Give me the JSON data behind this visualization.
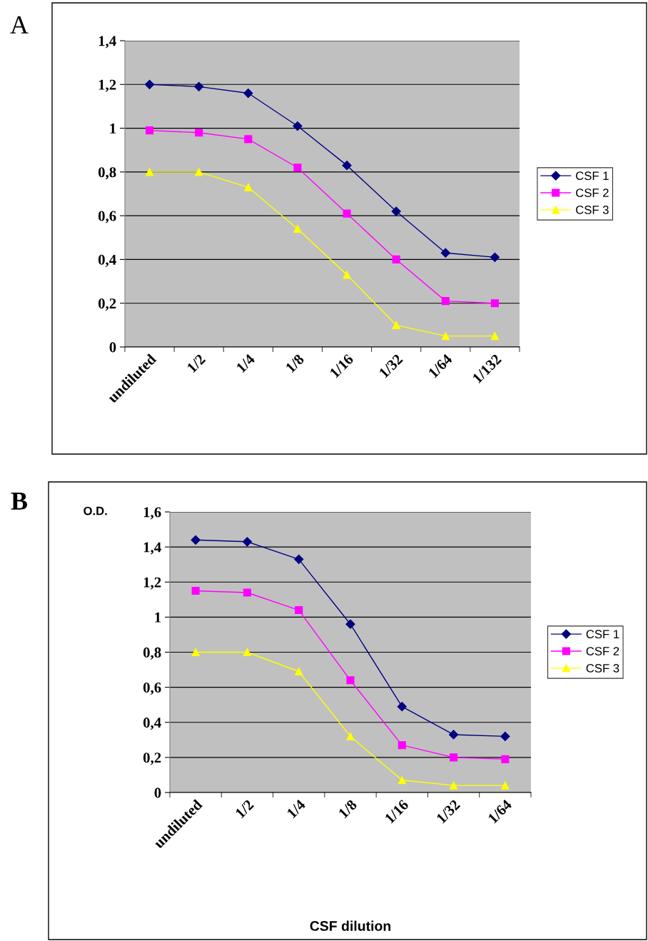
{
  "chart_data": [
    {
      "type": "line",
      "annotations": [
        "A"
      ],
      "categories": [
        "undiluted",
        "1/2",
        "1/4",
        "1/8",
        "1/16",
        "1/32",
        "1/64",
        "1/132"
      ],
      "ylim": [
        0,
        1.4
      ],
      "yticks": [
        {
          "value": 0,
          "label": "0"
        },
        {
          "value": 0.2,
          "label": "0,2"
        },
        {
          "value": 0.4,
          "label": "0,4"
        },
        {
          "value": 0.6,
          "label": "0,6"
        },
        {
          "value": 0.8,
          "label": "0,8"
        },
        {
          "value": 1,
          "label": "1"
        },
        {
          "value": 1.2,
          "label": "1,2"
        },
        {
          "value": 1.4,
          "label": "1,4"
        }
      ],
      "grid": "y",
      "legend": "right",
      "series": [
        {
          "name": "CSF 1",
          "color": "#000080",
          "marker": "diamond",
          "values": [
            1.2,
            1.19,
            1.16,
            1.01,
            0.83,
            0.62,
            0.43,
            0.41
          ]
        },
        {
          "name": "CSF 2",
          "color": "#ff00ff",
          "marker": "square",
          "values": [
            0.99,
            0.98,
            0.95,
            0.82,
            0.61,
            0.4,
            0.21,
            0.2
          ]
        },
        {
          "name": "CSF 3",
          "color": "#ffff00",
          "marker": "triangle",
          "values": [
            0.8,
            0.8,
            0.73,
            0.54,
            0.33,
            0.1,
            0.05,
            0.05
          ]
        }
      ]
    },
    {
      "type": "line",
      "annotations": [
        "B"
      ],
      "ylabel": "O.D.",
      "xlabel": "CSF dilution",
      "categories": [
        "undiluted",
        "1/2",
        "1/4",
        "1/8",
        "1/16",
        "1/32",
        "1/64"
      ],
      "ylim": [
        0,
        1.6
      ],
      "yticks": [
        {
          "value": 0,
          "label": "0"
        },
        {
          "value": 0.2,
          "label": "0,2"
        },
        {
          "value": 0.4,
          "label": "0,4"
        },
        {
          "value": 0.6,
          "label": "0,6"
        },
        {
          "value": 0.8,
          "label": "0,8"
        },
        {
          "value": 1,
          "label": "1"
        },
        {
          "value": 1.2,
          "label": "1,2"
        },
        {
          "value": 1.4,
          "label": "1,4"
        },
        {
          "value": 1.6,
          "label": "1,6"
        }
      ],
      "grid": "y",
      "legend": "right",
      "series": [
        {
          "name": "CSF 1",
          "color": "#000080",
          "marker": "diamond",
          "values": [
            1.44,
            1.43,
            1.33,
            0.96,
            0.49,
            0.33,
            0.32
          ]
        },
        {
          "name": "CSF 2",
          "color": "#ff00ff",
          "marker": "square",
          "values": [
            1.15,
            1.14,
            1.04,
            0.64,
            0.27,
            0.2,
            0.19
          ]
        },
        {
          "name": "CSF 3",
          "color": "#ffff00",
          "marker": "triangle",
          "values": [
            0.8,
            0.8,
            0.69,
            0.32,
            0.07,
            0.04,
            0.04
          ]
        }
      ]
    }
  ]
}
